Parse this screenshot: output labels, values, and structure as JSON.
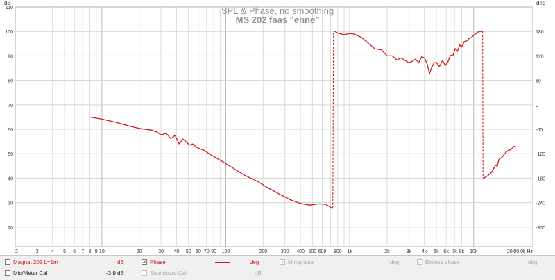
{
  "chart_data": {
    "type": "line",
    "title": "SPL & Phase, no smoothing",
    "subtitle": "MS 202 faas \"enne\"",
    "left_axis": {
      "unit": "dB",
      "ticks": [
        20,
        30,
        40,
        50,
        60,
        70,
        80,
        90,
        100,
        110
      ],
      "range": [
        12,
        110
      ]
    },
    "right_axis": {
      "unit": "deg",
      "ticks": [
        "180",
        "120",
        "60",
        "0",
        "-60",
        "-120",
        "-180",
        "-240",
        "-300"
      ],
      "tick_values": [
        180,
        120,
        60,
        0,
        -60,
        -120,
        -180,
        -240,
        -300
      ],
      "range": [
        -348,
        240
      ]
    },
    "x_axis": {
      "scale": "log",
      "range": [
        2,
        30000
      ],
      "unit": "Hz",
      "tick_labels": [
        {
          "v": 2,
          "t": "2"
        },
        {
          "v": 3,
          "t": "3"
        },
        {
          "v": 4,
          "t": "4"
        },
        {
          "v": 5,
          "t": "5"
        },
        {
          "v": 6,
          "t": "6"
        },
        {
          "v": 7,
          "t": "7"
        },
        {
          "v": 8,
          "t": "8"
        },
        {
          "v": 9,
          "t": "9"
        },
        {
          "v": 10,
          "t": "10"
        },
        {
          "v": 20,
          "t": "20"
        },
        {
          "v": 30,
          "t": "30"
        },
        {
          "v": 40,
          "t": "40"
        },
        {
          "v": 50,
          "t": "50"
        },
        {
          "v": 60,
          "t": "60"
        },
        {
          "v": 70,
          "t": "70"
        },
        {
          "v": 80,
          "t": "80"
        },
        {
          "v": 100,
          "t": "100"
        },
        {
          "v": 200,
          "t": "200"
        },
        {
          "v": 300,
          "t": "300"
        },
        {
          "v": 400,
          "t": "400"
        },
        {
          "v": 500,
          "t": "500"
        },
        {
          "v": 600,
          "t": "600"
        },
        {
          "v": 800,
          "t": "800"
        },
        {
          "v": 1000,
          "t": "1k"
        },
        {
          "v": 2000,
          "t": "2k"
        },
        {
          "v": 3000,
          "t": "3k"
        },
        {
          "v": 4000,
          "t": "4k"
        },
        {
          "v": 5000,
          "t": "5k"
        },
        {
          "v": 6000,
          "t": "6k"
        },
        {
          "v": 7000,
          "t": "7k"
        },
        {
          "v": 8000,
          "t": "8k"
        },
        {
          "v": 10000,
          "t": "10k"
        },
        {
          "v": 20000,
          "t": "20k"
        },
        {
          "v": 30000,
          "t": "30.0k Hz"
        }
      ]
    },
    "series": [
      {
        "name": "Phase",
        "color": "#d01818",
        "axis": "right",
        "x": [
          8,
          10,
          13,
          17,
          20,
          25,
          28,
          30,
          33,
          36,
          39,
          42,
          45,
          48,
          51,
          54,
          58,
          62,
          67,
          75,
          90,
          110,
          140,
          180,
          220,
          270,
          330,
          400,
          480,
          560,
          640,
          720,
          730,
          740,
          800,
          900,
          1000,
          1100,
          1250,
          1400,
          1600,
          1800,
          2000,
          2200,
          2400,
          2600,
          2800,
          3000,
          3200,
          3400,
          3600,
          3800,
          4000,
          4200,
          4400,
          4600,
          4800,
          5000,
          5300,
          5600,
          5900,
          6200,
          6500,
          6800,
          7100,
          7400,
          7700,
          8000,
          8400,
          8800,
          9200,
          9600,
          10000,
          10500,
          11000,
          11500,
          11800,
          11900,
          12000,
          13000,
          14000,
          15000,
          15500,
          16000,
          17000,
          18000,
          19000,
          20000,
          21000,
          22000
        ],
        "y": [
          -30,
          -35,
          -43,
          -53,
          -58,
          -62,
          -67,
          -74,
          -70,
          -83,
          -75,
          -96,
          -84,
          -91,
          -99,
          -96,
          -104,
          -108,
          -112,
          -122,
          -136,
          -152,
          -172,
          -188,
          -204,
          -219,
          -233,
          -242,
          -246,
          -243,
          -244,
          -254,
          -254,
          182,
          176,
          172,
          175,
          173,
          165,
          152,
          137,
          135,
          120,
          120,
          110,
          115,
          109,
          103,
          107,
          112,
          103,
          118,
          115,
          101,
          77,
          93,
          103,
          104,
          94,
          109,
          96,
          106,
          121,
          121,
          138,
          131,
          147,
          142,
          155,
          157,
          163,
          165,
          171,
          175,
          180,
          180,
          180,
          -180,
          -180,
          -174,
          -165,
          -148,
          -151,
          -134,
          -128,
          -118,
          -112,
          -110,
          -102,
          -103
        ]
      }
    ]
  },
  "legend": {
    "row1": {
      "name": "Magnat 202 L=1m",
      "spl_unit": "dB",
      "phase_label": "Phase",
      "phase_unit": "deg",
      "min_phase_label": "Min phase",
      "min_phase_unit": "deg",
      "excess_phase_label": "Excess phase",
      "excess_phase_unit": "deg"
    },
    "row2": {
      "name": "Mic/Meter Cal",
      "value": "-3,9 dB",
      "soundcard_label": "Soundcard Cal",
      "soundcard_unit": "dB"
    }
  }
}
